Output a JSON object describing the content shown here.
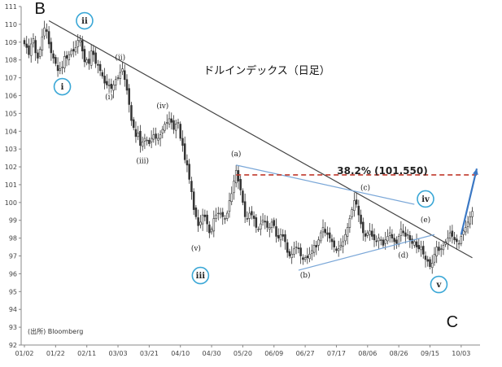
{
  "chart_data": {
    "type": "candlestick",
    "title": "ドルインデックス（日足）",
    "source": "(出所) Bloomberg",
    "ylim": [
      92,
      111
    ],
    "y_ticks": [
      92,
      93,
      94,
      95,
      96,
      97,
      98,
      99,
      100,
      101,
      102,
      103,
      104,
      105,
      106,
      107,
      108,
      109,
      110,
      111
    ],
    "x_ticks": [
      "01/02",
      "01/22",
      "02/11",
      "03/03",
      "03/21",
      "04/10",
      "04/30",
      "05/20",
      "06/09",
      "06/27",
      "07/17",
      "08/06",
      "08/26",
      "09/15",
      "10/03"
    ],
    "x_tick_index": [
      0,
      14,
      28,
      42,
      56,
      70,
      84,
      98,
      112,
      126,
      140,
      154,
      168,
      182,
      196
    ],
    "n_days": 204,
    "closes": [
      108.9,
      108.7,
      108.3,
      108.9,
      109.2,
      108.4,
      108.1,
      108.6,
      109.3,
      109.8,
      109.6,
      108.9,
      108.4,
      108.1,
      107.8,
      107.4,
      107.5,
      107.6,
      108.2,
      108.1,
      108.3,
      108.5,
      108.5,
      108.7,
      109.1,
      109.1,
      108.5,
      107.9,
      108.0,
      107.8,
      108.5,
      108.3,
      107.8,
      107.7,
      107.4,
      107.1,
      106.7,
      106.6,
      106.6,
      106.4,
      106.6,
      106.9,
      107.0,
      107.3,
      107.5,
      106.9,
      106.3,
      105.5,
      104.6,
      104.2,
      103.7,
      103.9,
      103.2,
      103.4,
      103.6,
      103.5,
      103.3,
      103.6,
      103.8,
      103.6,
      103.6,
      103.8,
      104.1,
      104.4,
      104.5,
      104.7,
      104.5,
      104.1,
      104.4,
      104.5,
      103.6,
      103.2,
      102.4,
      102.1,
      101.3,
      100.6,
      99.6,
      99.2,
      98.7,
      98.9,
      99.3,
      99.2,
      98.8,
      98.3,
      98.5,
      99.1,
      99.3,
      99.4,
      99.4,
      99.2,
      99.1,
      99.4,
      100.1,
      100.5,
      101.2,
      101.8,
      101.2,
      100.7,
      100.0,
      99.2,
      99.1,
      99.4,
      99.3,
      99.1,
      98.6,
      98.5,
      98.8,
      99.0,
      98.9,
      98.6,
      98.6,
      98.9,
      98.7,
      98.1,
      98.0,
      98.2,
      98.1,
      97.8,
      97.2,
      97.0,
      97.1,
      97.4,
      97.5,
      97.4,
      97.0,
      96.8,
      96.9,
      96.9,
      97.1,
      97.3,
      97.6,
      97.5,
      97.9,
      98.3,
      98.6,
      98.3,
      98.2,
      98.0,
      97.8,
      97.5,
      97.3,
      97.4,
      97.6,
      97.8,
      98.2,
      98.6,
      99.1,
      99.6,
      100.1,
      99.9,
      99.3,
      98.8,
      98.3,
      98.1,
      98.3,
      98.4,
      98.1,
      97.9,
      97.8,
      98.0,
      97.9,
      97.6,
      97.9,
      98.1,
      98.3,
      98.0,
      97.8,
      97.7,
      98.1,
      98.5,
      98.3,
      98.1,
      98.2,
      97.9,
      97.7,
      97.8,
      97.5,
      97.4,
      97.5,
      97.1,
      96.8,
      96.7,
      96.4,
      96.6,
      97.1,
      97.5,
      97.3,
      97.4,
      97.6,
      97.8,
      98.0,
      98.3,
      98.1,
      97.9,
      97.8,
      97.7,
      98.1,
      98.4,
      98.6,
      98.9,
      99.2,
      99.5
    ],
    "ohlc_note": "daily candles, values approximate",
    "trendlines": [
      {
        "name": "main-downtrend",
        "from_index": 11,
        "from_value": 110.2,
        "to_index": 201,
        "to_value": 96.9,
        "color": "#444444"
      },
      {
        "name": "triangle-upper",
        "from_index": 95,
        "from_value": 102.1,
        "to_index": 175,
        "to_value": 99.9,
        "color": "#7aa7d8"
      },
      {
        "name": "triangle-lower",
        "from_index": 123,
        "from_value": 96.2,
        "to_index": 184,
        "to_value": 98.2,
        "color": "#7aa7d8"
      },
      {
        "name": "fib-38.2",
        "from_index": 95,
        "from_value": 101.55,
        "to_index": 203,
        "to_value": 101.55,
        "color": "#c0392b",
        "dashed": true
      }
    ],
    "fib_label": "38.2% (101.550)",
    "big_labels": [
      {
        "text": "B",
        "index": 7,
        "value": 110.6
      },
      {
        "text": "C",
        "index": 192,
        "value": 93.0
      }
    ],
    "wave_labels": [
      {
        "text": "(ii)",
        "index": 43,
        "value": 108.0
      },
      {
        "text": "(i)",
        "index": 38,
        "value": 105.8
      },
      {
        "text": "(iii)",
        "index": 53,
        "value": 102.2
      },
      {
        "text": "(iv)",
        "index": 62,
        "value": 105.3
      },
      {
        "text": "(v)",
        "index": 77,
        "value": 97.3
      },
      {
        "text": "(a)",
        "index": 95,
        "value": 102.6
      },
      {
        "text": "(b)",
        "index": 126,
        "value": 95.8
      },
      {
        "text": "(c)",
        "index": 153,
        "value": 100.7
      },
      {
        "text": "(d)",
        "index": 170,
        "value": 96.9
      },
      {
        "text": "(e)",
        "index": 180,
        "value": 98.9
      }
    ],
    "circle_labels": [
      {
        "text": "i",
        "index": 17,
        "value": 106.5
      },
      {
        "text": "ii",
        "index": 27,
        "value": 110.2
      },
      {
        "text": "iii",
        "index": 79,
        "value": 95.9
      },
      {
        "text": "iv",
        "index": 180,
        "value": 100.2
      },
      {
        "text": "v",
        "index": 186,
        "value": 95.4
      }
    ],
    "arrow": {
      "from_index": 196,
      "from_value": 98.2,
      "to_index": 203,
      "to_value": 101.9,
      "color": "#3b78c4"
    }
  }
}
